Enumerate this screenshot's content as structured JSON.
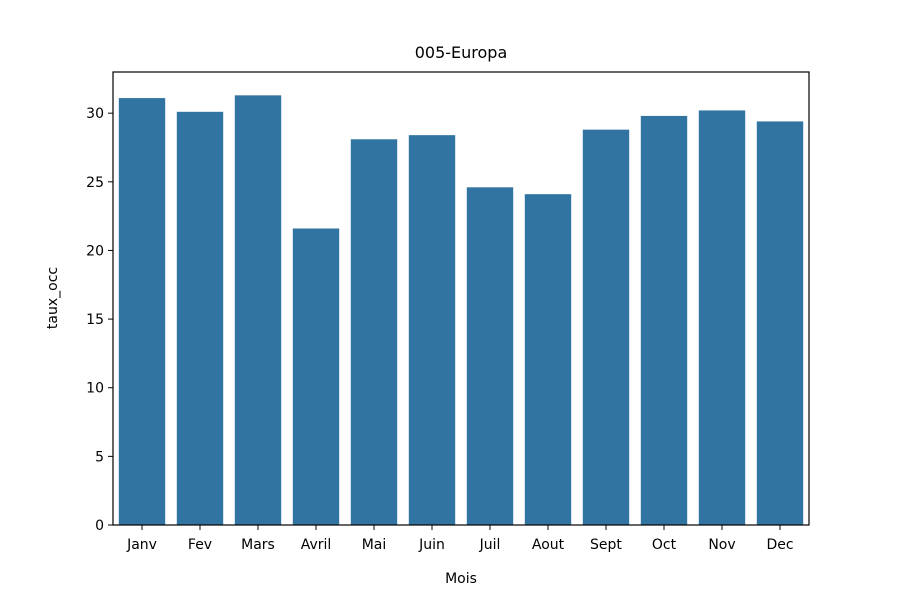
{
  "chart_data": {
    "type": "bar",
    "title": "005-Europa",
    "xlabel": "Mois",
    "ylabel": "taux_occ",
    "categories": [
      "Janv",
      "Fev",
      "Mars",
      "Avril",
      "Mai",
      "Juin",
      "Juil",
      "Aout",
      "Sept",
      "Oct",
      "Nov",
      "Dec"
    ],
    "values": [
      31.1,
      30.1,
      31.3,
      21.6,
      28.1,
      28.4,
      24.6,
      24.1,
      28.8,
      29.8,
      30.2,
      29.4
    ],
    "ylim": [
      0,
      33
    ],
    "yticks": [
      0,
      5,
      10,
      15,
      20,
      25,
      30
    ],
    "bar_color": "#3274a1",
    "grid": false
  }
}
